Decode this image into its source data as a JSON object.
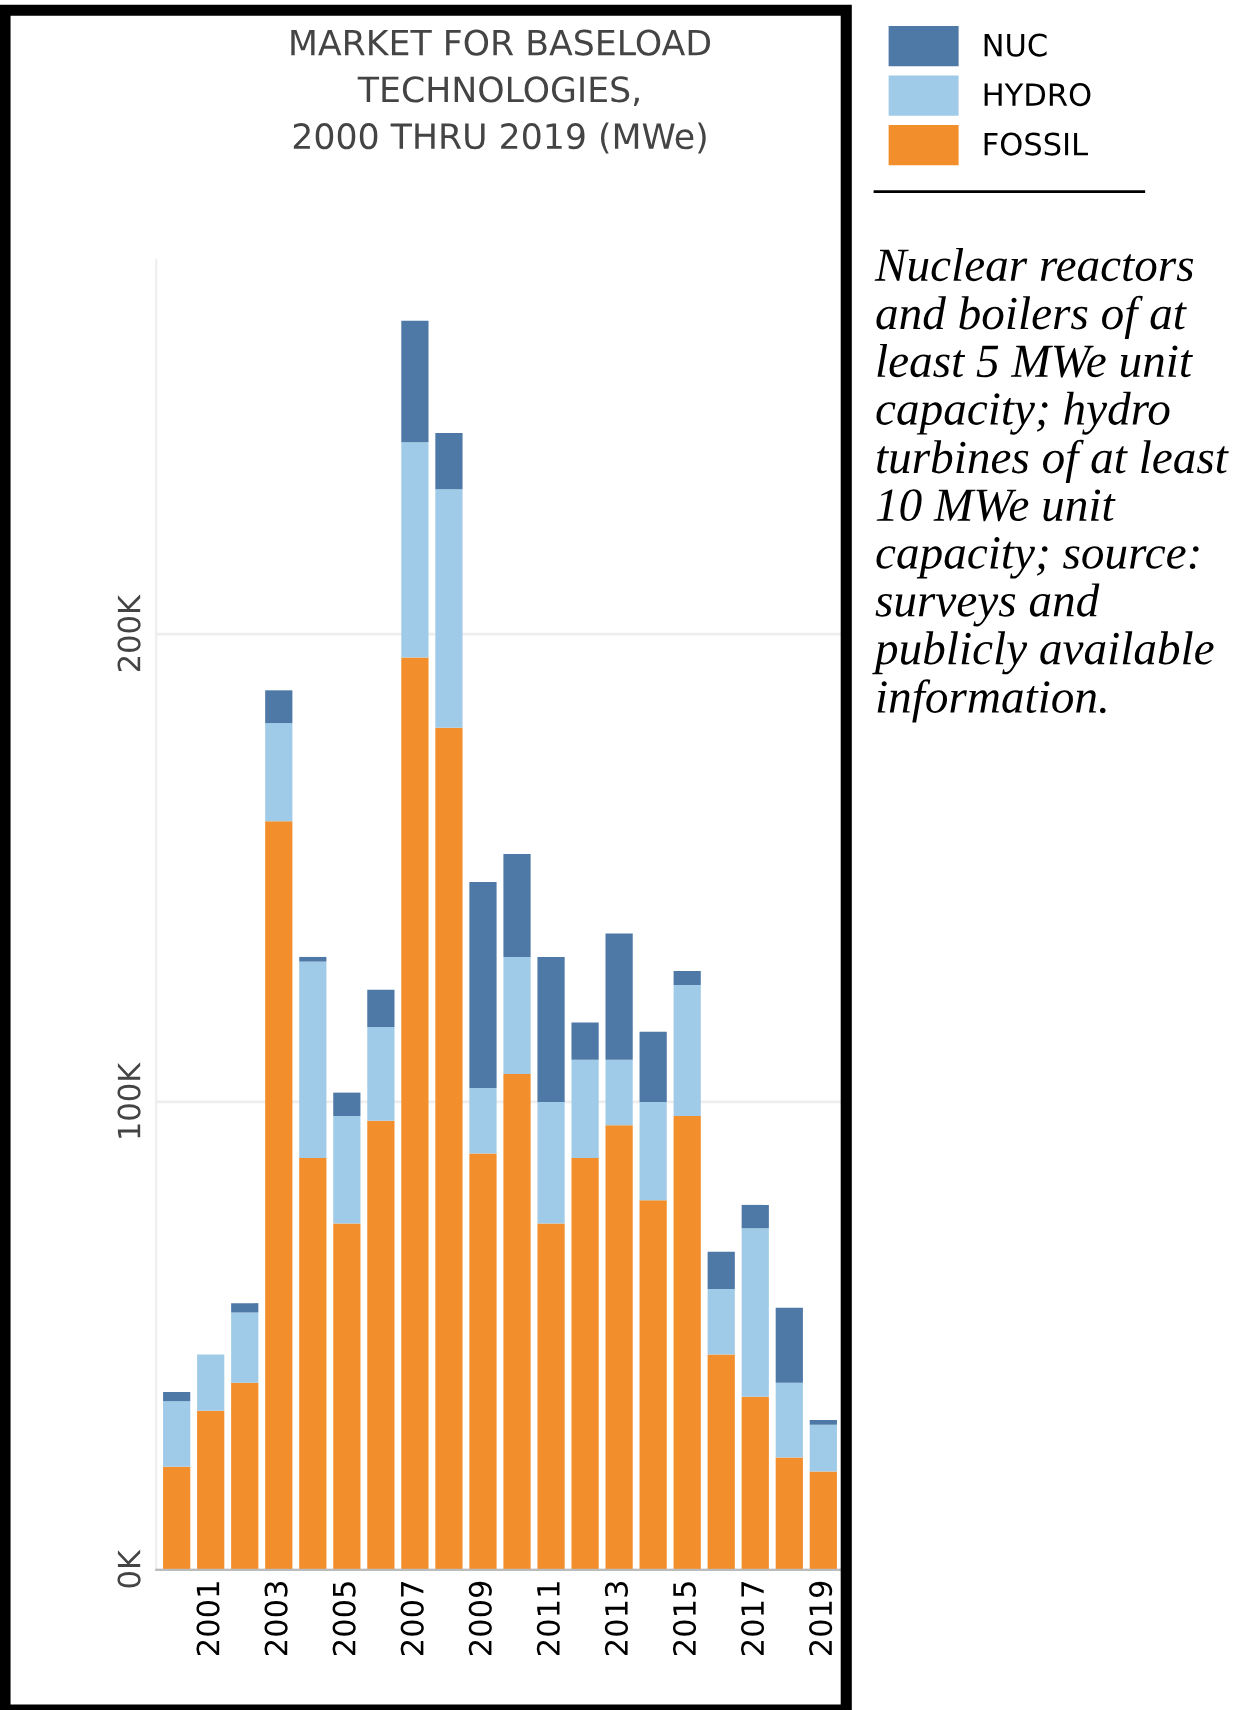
{
  "chart_data": {
    "type": "bar",
    "title": "MARKET FOR BASELOAD\nTECHNOLOGIES,\n2000 THRU 2019 (MWe)",
    "stacked": true,
    "categories": [
      null,
      "2001",
      null,
      "2003",
      null,
      "2005",
      null,
      "2007",
      null,
      "2009",
      null,
      "2011",
      null,
      "2013",
      null,
      "2015",
      null,
      "2017",
      null,
      "2019"
    ],
    "series": [
      {
        "name": "FOSSIL",
        "color": "#f28e2b",
        "values": [
          22,
          34,
          40,
          160,
          88,
          74,
          96,
          195,
          180,
          89,
          106,
          74,
          88,
          95,
          79,
          97,
          46,
          37,
          24,
          21
        ]
      },
      {
        "name": "HYDRO",
        "color": "#a0cbe8",
        "values": [
          14,
          12,
          15,
          21,
          42,
          23,
          20,
          46,
          51,
          14,
          25,
          26,
          21,
          14,
          21,
          28,
          14,
          36,
          16,
          10
        ]
      },
      {
        "name": "NUC",
        "color": "#4e79a7",
        "values": [
          2,
          0,
          2,
          7,
          1,
          5,
          8,
          26,
          12,
          44,
          22,
          31,
          8,
          27,
          15,
          3,
          8,
          5,
          16,
          1
        ]
      }
    ],
    "ylim": [
      0,
      280
    ],
    "yticks": [
      {
        "value": 0,
        "label": "0K"
      },
      {
        "value": 100,
        "label": "100K"
      },
      {
        "value": 200,
        "label": "200K"
      }
    ],
    "grid": "y",
    "legend": "top right",
    "annotations": [
      "Nuclear reactors and boilers of at least 5 MWe unit capacity; hydro turbines of at least 10 MWe unit capacity; source: surveys and publicly available information."
    ]
  }
}
